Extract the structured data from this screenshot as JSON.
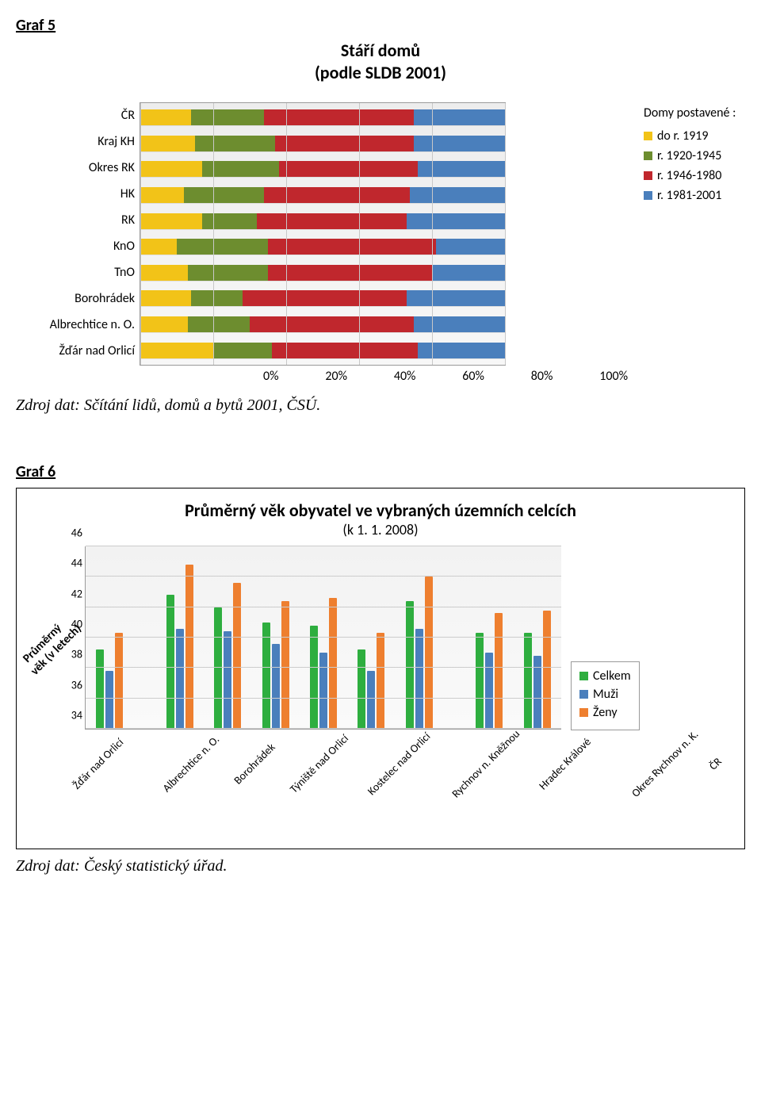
{
  "graf5": {
    "label": "Graf 5",
    "title_l1": "Stáří domů",
    "title_l2": "(podle SLDB 2001)",
    "source": "Zdroj dat: Sčítání lidů, domů a bytů 2001, ČSÚ.",
    "xtick_labels": [
      "0%",
      "20%",
      "40%",
      "60%",
      "80%",
      "100%"
    ],
    "xtick_pos_pct": [
      0,
      20,
      40,
      60,
      80,
      100
    ],
    "legend_title": "Domy postavené :",
    "legend": [
      {
        "label": "do r. 1919",
        "color": "#f2c318"
      },
      {
        "label": "r. 1920-1945",
        "color": "#6d8d2f"
      },
      {
        "label": "r. 1946-1980",
        "color": "#c0272d"
      },
      {
        "label": "r. 1981-2001",
        "color": "#4a7fbc"
      }
    ],
    "categories": [
      {
        "label": "ČR",
        "values": [
          14,
          20,
          41,
          25
        ]
      },
      {
        "label": "Kraj KH",
        "values": [
          15,
          22,
          38,
          25
        ]
      },
      {
        "label": "Okres RK",
        "values": [
          17,
          21,
          38,
          24
        ]
      },
      {
        "label": "HK",
        "values": [
          12,
          22,
          40,
          26
        ]
      },
      {
        "label": "RK",
        "values": [
          17,
          15,
          41,
          27
        ]
      },
      {
        "label": "KnO",
        "values": [
          10,
          25,
          46,
          19
        ]
      },
      {
        "label": "TnO",
        "values": [
          13,
          22,
          45,
          20
        ]
      },
      {
        "label": "Borohrádek",
        "values": [
          14,
          14,
          45,
          27
        ]
      },
      {
        "label": "Albrechtice n. O.",
        "values": [
          13,
          17,
          45,
          25
        ]
      },
      {
        "label": "Žďár nad Orlicí",
        "values": [
          20,
          16,
          40,
          24
        ]
      }
    ]
  },
  "graf6": {
    "label": "Graf 6",
    "title": "Průměrný věk obyvatel ve vybraných územních celcích",
    "subtitle": "(k 1. 1. 2008)",
    "ylabel": "Průměrný\nvěk (v letech)",
    "source": "Zdroj dat: Český statistický úřad.",
    "ymin": 34,
    "ymax": 46,
    "ytick_step": 2,
    "series": [
      {
        "name": "Celkem",
        "color": "#2eae3f"
      },
      {
        "name": "Muži",
        "color": "#4a7fbc"
      },
      {
        "name": "Ženy",
        "color": "#ee7f2f"
      }
    ],
    "categories": [
      {
        "label": "Žďár nad Orlicí",
        "values": [
          39.2,
          37.8,
          40.3
        ],
        "gap_after": true
      },
      {
        "label": "Albrechtice n. O.",
        "values": [
          42.8,
          40.6,
          44.8
        ]
      },
      {
        "label": "Borohrádek",
        "values": [
          42.0,
          40.4,
          43.6
        ]
      },
      {
        "label": "Týniště nad Orlicí",
        "values": [
          41.0,
          39.6,
          42.4
        ]
      },
      {
        "label": "Kostelec nad Orlicí",
        "values": [
          40.8,
          39.0,
          42.6
        ]
      },
      {
        "label": "Rychnov n. Kněžnou",
        "values": [
          39.2,
          37.8,
          40.3
        ]
      },
      {
        "label": "Hradec Králové",
        "values": [
          42.4,
          40.6,
          44.0
        ],
        "gap_after": true
      },
      {
        "label": "Okres Rychnov n. K.",
        "values": [
          40.3,
          39.0,
          41.6
        ]
      },
      {
        "label": "ČR",
        "values": [
          40.3,
          38.8,
          41.8
        ]
      }
    ]
  }
}
